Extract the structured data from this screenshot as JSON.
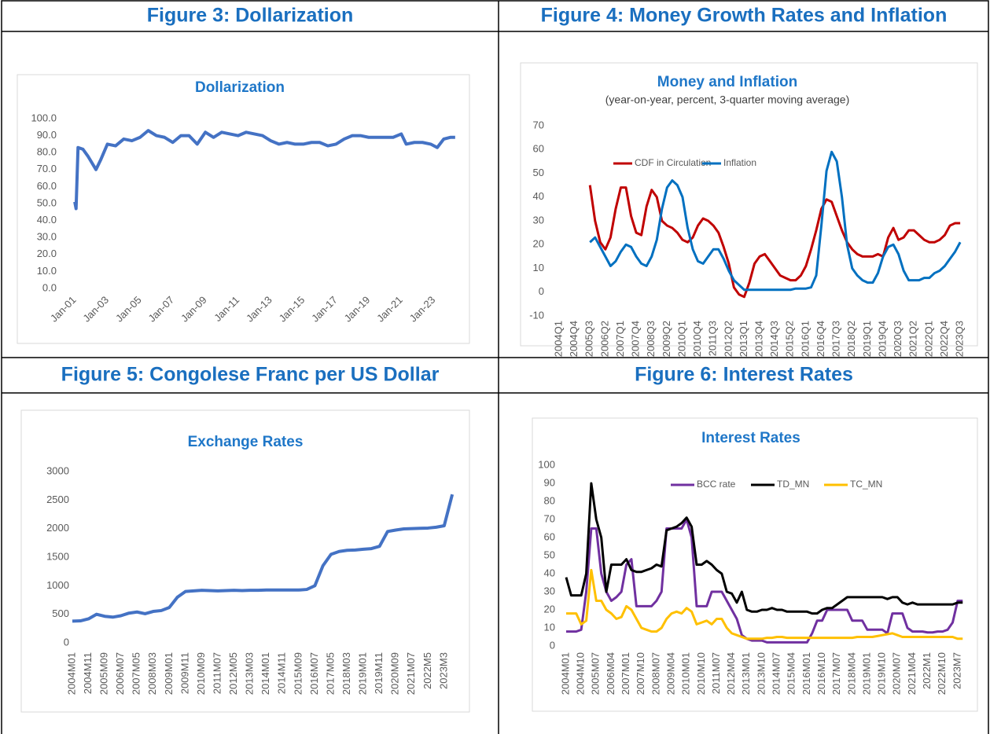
{
  "table": {
    "headers": [
      "Figure 3: Dollarization",
      "Figure 4: Money Growth Rates and Inflation",
      "Figure 5: Congolese Franc per US Dollar",
      "Figure 6: Interest Rates"
    ]
  },
  "chart_data": [
    {
      "type": "line",
      "title": "Dollarization",
      "color": "#4472c4",
      "x": [
        2001.0,
        2001.08,
        2001.2,
        2001.5,
        2001.8,
        2002.3,
        2002.6,
        2003.0,
        2003.5,
        2004.0,
        2004.5,
        2005.0,
        2005.5,
        2006.0,
        2006.5,
        2007.0,
        2007.5,
        2008.0,
        2008.5,
        2009.0,
        2009.5,
        2010.0,
        2010.5,
        2011.0,
        2011.5,
        2012.0,
        2012.5,
        2013.0,
        2013.5,
        2014.0,
        2014.5,
        2015.0,
        2015.5,
        2016.0,
        2016.5,
        2017.0,
        2017.5,
        2018.0,
        2018.5,
        2019.0,
        2019.5,
        2020.0,
        2020.5,
        2021.0,
        2021.3,
        2021.8,
        2022.3,
        2022.8,
        2023.2,
        2023.6,
        2024.0,
        2024.3
      ],
      "values": [
        51,
        47,
        83,
        82,
        78,
        70,
        76,
        85,
        84,
        88,
        87,
        89,
        93,
        90,
        89,
        86,
        90,
        90,
        85,
        92,
        89,
        92,
        91,
        90,
        92,
        91,
        90,
        87,
        85,
        86,
        85,
        85,
        86,
        86,
        84,
        85,
        88,
        90,
        90,
        89,
        89,
        89,
        89,
        91,
        85,
        86,
        86,
        85,
        83,
        88,
        89,
        89
      ],
      "xlim": [
        2000.9,
        2024.5
      ],
      "xticks": [
        {
          "value": 2001,
          "label": "Jan-01"
        },
        {
          "value": 2003,
          "label": "Jan-03"
        },
        {
          "value": 2005,
          "label": "Jan-05"
        },
        {
          "value": 2007,
          "label": "Jan-07"
        },
        {
          "value": 2009,
          "label": "Jan-09"
        },
        {
          "value": 2011,
          "label": "Jan-11"
        },
        {
          "value": 2013,
          "label": "Jan-13"
        },
        {
          "value": 2015,
          "label": "Jan-15"
        },
        {
          "value": 2017,
          "label": "Jan-17"
        },
        {
          "value": 2019,
          "label": "Jan-19"
        },
        {
          "value": 2021,
          "label": "Jan-21"
        },
        {
          "value": 2023,
          "label": "Jan-23"
        }
      ],
      "ylim": [
        0,
        100
      ],
      "yticks": [
        {
          "value": 0,
          "label": "0.0"
        },
        {
          "value": 10,
          "label": "10.0"
        },
        {
          "value": 20,
          "label": "20.0"
        },
        {
          "value": 30,
          "label": "30.0"
        },
        {
          "value": 40,
          "label": "40.0"
        },
        {
          "value": 50,
          "label": "50.0"
        },
        {
          "value": 60,
          "label": "60.0"
        },
        {
          "value": 70,
          "label": "70.0"
        },
        {
          "value": 80,
          "label": "80.0"
        },
        {
          "value": 90,
          "label": "90.0"
        },
        {
          "value": 100,
          "label": "100.0"
        }
      ]
    },
    {
      "type": "line",
      "title": "Money and Inflation",
      "subtitle": "(year-on-year, percent, 3-quarter moving average)",
      "categories": [
        "2004Q1",
        null,
        null,
        "2004Q4",
        null,
        null,
        "2005Q3",
        null,
        null,
        "2006Q2",
        null,
        null,
        "2007Q1",
        null,
        null,
        "2007Q4",
        null,
        null,
        "2008Q3",
        null,
        null,
        "2009Q2",
        null,
        null,
        "2010Q1",
        null,
        null,
        "2010Q4",
        null,
        null,
        "2011Q3",
        null,
        null,
        "2012Q2",
        null,
        null,
        "2013Q1",
        null,
        null,
        "2013Q4",
        null,
        null,
        "2014Q3",
        null,
        null,
        "2015Q2",
        null,
        null,
        "2016Q1",
        null,
        null,
        "2016Q4",
        null,
        null,
        "2017Q3",
        null,
        null,
        "2018Q2",
        null,
        null,
        "2019Q1",
        null,
        null,
        "2019Q4",
        null,
        null,
        "2020Q3",
        null,
        null,
        "2021Q2",
        null,
        null,
        "2022Q1",
        null,
        null,
        "2022Q4",
        null,
        null,
        "2023Q3"
      ],
      "series": [
        {
          "name": "CDF in Circulation",
          "color": "#c00000",
          "values": [
            null,
            null,
            null,
            null,
            null,
            null,
            45,
            30,
            21,
            18,
            23,
            35,
            44,
            44,
            32,
            25,
            24,
            36,
            43,
            40,
            30,
            28,
            27,
            25,
            22,
            21,
            23,
            28,
            31,
            30,
            28,
            25,
            19,
            12,
            2,
            -1,
            -2,
            4,
            12,
            15,
            16,
            13,
            10,
            7,
            6,
            5,
            5,
            7,
            11,
            18,
            26,
            35,
            39,
            38,
            32,
            26,
            21,
            18,
            16,
            15,
            15,
            15,
            16,
            15,
            23,
            27,
            22,
            23,
            26,
            26,
            24,
            22,
            21,
            21,
            22,
            24,
            28,
            29,
            29
          ]
        },
        {
          "name": "Inflation",
          "color": "#0070c0",
          "values": [
            null,
            null,
            null,
            null,
            null,
            null,
            21,
            23,
            19,
            15,
            11,
            13,
            17,
            20,
            19,
            15,
            12,
            11,
            15,
            22,
            35,
            44,
            47,
            45,
            40,
            27,
            18,
            13,
            12,
            15,
            18,
            18,
            14,
            9,
            5,
            3,
            1,
            1,
            1,
            1,
            1,
            1,
            1,
            1,
            1,
            1,
            1.5,
            1.5,
            1.5,
            2,
            7,
            28,
            51,
            59,
            55,
            40,
            20,
            10,
            7,
            5,
            4,
            4,
            8,
            15,
            19,
            20,
            16,
            9,
            5,
            5,
            5,
            6,
            6,
            8,
            9,
            11,
            14,
            17,
            21
          ]
        }
      ],
      "ylim": [
        -10,
        70
      ],
      "yticks": [
        -10,
        0,
        10,
        20,
        30,
        40,
        50,
        60,
        70
      ]
    },
    {
      "type": "line",
      "title": "Exchange Rates",
      "color": "#4472c4",
      "categories": [
        "2004M01",
        null,
        "2004M11",
        null,
        "2005M09",
        null,
        "2006M07",
        null,
        "2007M05",
        null,
        "2008M03",
        null,
        "2009M01",
        null,
        "2009M11",
        null,
        "2010M09",
        null,
        "2011M07",
        null,
        "2012M05",
        null,
        "2013M03",
        null,
        "2014M01",
        null,
        "2014M11",
        null,
        "2015M09",
        null,
        "2016M07",
        null,
        "2017M05",
        null,
        "2018M03",
        null,
        "2019M01",
        null,
        "2019M11",
        null,
        "2020M09",
        null,
        "2021M07",
        null,
        "2022M5",
        null,
        "2023M3",
        null
      ],
      "values": [
        380,
        385,
        420,
        500,
        465,
        450,
        475,
        520,
        540,
        510,
        550,
        565,
        620,
        800,
        900,
        910,
        920,
        915,
        910,
        915,
        920,
        915,
        920,
        920,
        925,
        925,
        925,
        925,
        925,
        935,
        1000,
        1350,
        1550,
        1600,
        1620,
        1625,
        1640,
        1650,
        1690,
        1950,
        1975,
        1995,
        2000,
        2005,
        2010,
        2025,
        2050,
        2600
      ],
      "ylim": [
        0,
        3000
      ],
      "yticks": [
        0,
        500,
        1000,
        1500,
        2000,
        2500,
        3000
      ]
    },
    {
      "type": "line",
      "title": "Interest Rates",
      "categories": [
        "2004M01",
        null,
        null,
        "2004M10",
        null,
        null,
        "2005M07",
        null,
        null,
        "2006M04",
        null,
        null,
        "2007M01",
        null,
        null,
        "2007M10",
        null,
        null,
        "2008M07",
        null,
        null,
        "2009M04",
        null,
        null,
        "2010M01",
        null,
        null,
        "2010M10",
        null,
        null,
        "2011M07",
        null,
        null,
        "2012M04",
        null,
        null,
        "2013M01",
        null,
        null,
        "2013M10",
        null,
        null,
        "2014M07",
        null,
        null,
        "2015M04",
        null,
        null,
        "2016M01",
        null,
        null,
        "2016M10",
        null,
        null,
        "2017M07",
        null,
        null,
        "2018M04",
        null,
        null,
        "2019M01",
        null,
        null,
        "2019M10",
        null,
        null,
        "2020M07",
        null,
        null,
        "2021M04",
        null,
        null,
        "2022M1",
        null,
        null,
        "2022M10",
        null,
        null,
        "2023M7",
        null
      ],
      "series": [
        {
          "name": "BCC rate",
          "color": "#7030a0",
          "values": [
            8,
            8,
            8,
            9,
            30,
            65,
            65,
            40,
            30,
            25,
            27,
            30,
            45,
            48,
            22,
            22,
            22,
            22,
            25,
            30,
            65,
            65,
            65,
            65,
            70,
            60,
            22,
            22,
            22,
            30,
            30,
            30,
            25,
            20,
            15,
            6,
            4,
            3,
            3,
            3,
            2,
            2,
            2,
            2,
            2,
            2,
            2,
            2,
            2,
            7,
            14,
            14,
            20,
            20,
            20,
            20,
            20,
            14,
            14,
            14,
            9,
            9,
            9,
            9,
            7,
            18,
            18,
            18,
            10,
            8,
            8,
            8,
            7.5,
            7.5,
            8,
            8,
            9,
            13,
            25,
            25
          ]
        },
        {
          "name": "TD_MN",
          "color": "#000000",
          "values": [
            38,
            28,
            28,
            28,
            40,
            90,
            70,
            60,
            30,
            45,
            45,
            45,
            48,
            42,
            41,
            41,
            42,
            43,
            45,
            44,
            64,
            65,
            66,
            68,
            71,
            66,
            45,
            45,
            47,
            45,
            42,
            40,
            30,
            29,
            24,
            30,
            20,
            19,
            19,
            20,
            20,
            21,
            20,
            20,
            19,
            19,
            19,
            19,
            19,
            18,
            18,
            20,
            21,
            21,
            23,
            25,
            27,
            27,
            27,
            27,
            27,
            27,
            27,
            27,
            26,
            27,
            27,
            24,
            23,
            24,
            23,
            23,
            23,
            23,
            23,
            23,
            23,
            23,
            24,
            24
          ]
        },
        {
          "name": "TC_MN",
          "color": "#ffc000",
          "values": [
            18,
            18,
            18,
            12,
            14,
            42,
            25,
            25,
            20,
            18,
            15,
            16,
            22,
            20,
            15,
            10,
            9,
            8,
            8,
            10,
            15,
            18,
            19,
            18,
            21,
            19,
            12,
            13,
            14,
            12,
            15,
            15,
            10,
            7,
            6,
            5,
            4,
            4,
            4,
            4,
            4.5,
            4.5,
            5,
            5,
            4.5,
            4.5,
            4.5,
            4.5,
            4.5,
            4.5,
            4.5,
            4.5,
            4.5,
            4.5,
            4.5,
            4.5,
            4.5,
            4.5,
            5,
            5,
            5,
            5,
            5.5,
            6,
            6.5,
            7,
            6,
            5,
            5,
            5,
            5,
            5,
            5,
            5,
            5,
            5,
            5,
            5,
            4,
            4
          ]
        }
      ],
      "ylim": [
        0,
        100
      ],
      "yticks": [
        0,
        10,
        20,
        30,
        40,
        50,
        60,
        70,
        80,
        90,
        100
      ]
    }
  ]
}
